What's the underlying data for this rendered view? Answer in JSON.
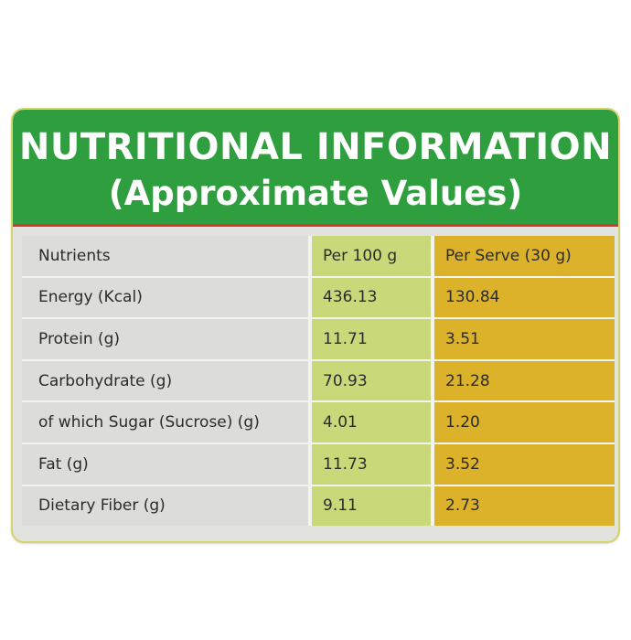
{
  "header": {
    "title_line1": "NUTRITIONAL INFORMATION",
    "title_line2": "(Approximate Values)"
  },
  "table": {
    "columns": [
      "Nutrients",
      "Per 100 g",
      "Per Serve (30 g)"
    ],
    "rows": [
      {
        "nutrient": "Energy (Kcal)",
        "per_100g": "436.13",
        "per_serve": "130.84"
      },
      {
        "nutrient": "Protein (g)",
        "per_100g": "11.71",
        "per_serve": "3.51"
      },
      {
        "nutrient": "Carbohydrate (g)",
        "per_100g": "70.93",
        "per_serve": "21.28"
      },
      {
        "nutrient": "of which Sugar (Sucrose) (g)",
        "per_100g": "4.01",
        "per_serve": "1.20"
      },
      {
        "nutrient": "Fat (g)",
        "per_100g": "11.73",
        "per_serve": "3.52"
      },
      {
        "nutrient": "Dietary Fiber (g)",
        "per_100g": "9.11",
        "per_serve": "2.73"
      }
    ]
  },
  "colors": {
    "header_green": "#2f9e3e",
    "header_rule_red": "#d43a2a",
    "per_100g_column": "#c9d97a",
    "per_serve_column": "#dcb22a",
    "nutrient_column": "#dcdcd8"
  }
}
